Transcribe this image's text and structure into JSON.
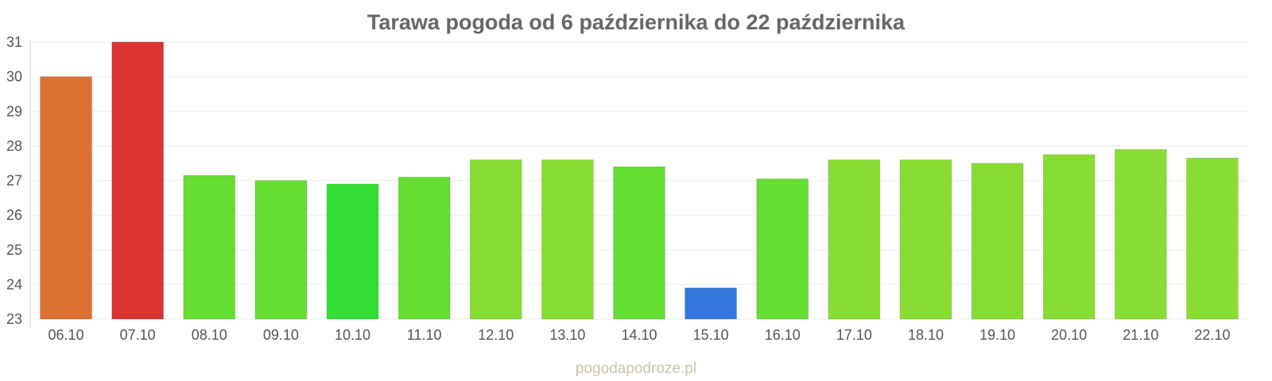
{
  "chart_data": {
    "type": "bar",
    "title": "Tarawa pogoda od 6 października do 22 października",
    "xlabel": "",
    "ylabel": "",
    "ylim": [
      23,
      31
    ],
    "yticks": [
      23,
      24,
      25,
      26,
      27,
      28,
      29,
      30,
      31
    ],
    "categories": [
      "06.10",
      "07.10",
      "08.10",
      "09.10",
      "10.10",
      "11.10",
      "12.10",
      "13.10",
      "14.10",
      "15.10",
      "16.10",
      "17.10",
      "18.10",
      "19.10",
      "20.10",
      "21.10",
      "22.10"
    ],
    "values": [
      30.0,
      31.0,
      27.15,
      27.0,
      26.9,
      27.1,
      27.6,
      27.6,
      27.4,
      23.9,
      27.05,
      27.6,
      27.6,
      27.5,
      27.75,
      27.9,
      27.65
    ],
    "colors": [
      "#dd7033",
      "#dc3333",
      "#66dd33",
      "#66dd33",
      "#33dd33",
      "#66dd33",
      "#88dd33",
      "#88dd33",
      "#66dd33",
      "#3377dd",
      "#66dd33",
      "#88dd33",
      "#88dd33",
      "#88dd33",
      "#88dd33",
      "#88dd33",
      "#88dd33"
    ],
    "grid": true,
    "legend": "none"
  },
  "credit": "pogodapodroze.pl"
}
